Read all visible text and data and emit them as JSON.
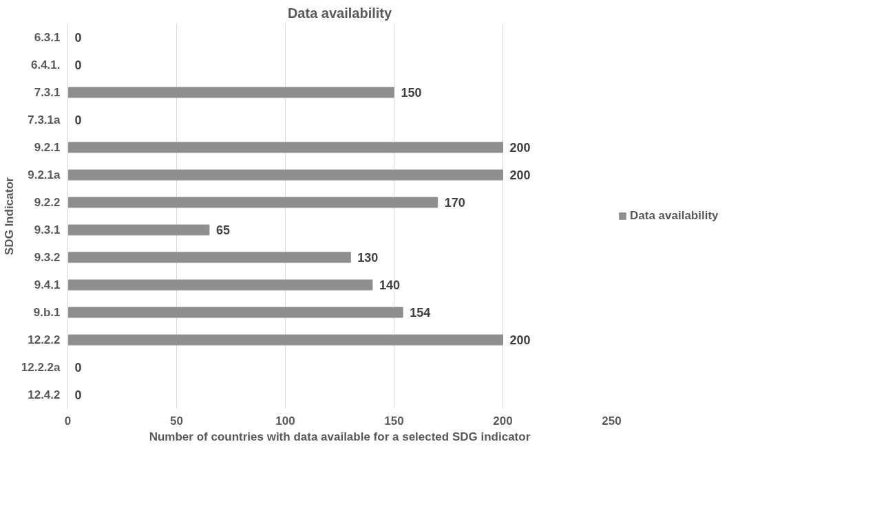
{
  "chart_data": {
    "type": "bar",
    "orientation": "horizontal",
    "title": "Data availability",
    "xlabel": "Number of countries with data available for a selected SDG indicator",
    "ylabel": "SDG Indicator",
    "categories": [
      "6.3.1",
      "6.4.1.",
      "7.3.1",
      "7.3.1a",
      "9.2.1",
      "9.2.1a",
      "9.2.2",
      "9.3.1",
      "9.3.2",
      "9.4.1",
      "9.b.1",
      "12.2.2",
      "12.2.2a",
      "12.4.2"
    ],
    "series": [
      {
        "name": "Data availability",
        "color": "#8f8f8f",
        "values": [
          0,
          0,
          150,
          0,
          200,
          200,
          170,
          65,
          130,
          140,
          154,
          200,
          0,
          0
        ]
      }
    ],
    "xlim": [
      0,
      250
    ],
    "xticks": [
      0,
      50,
      100,
      150,
      200,
      250
    ],
    "grid": "x",
    "legend": "right",
    "data_labels": true
  }
}
